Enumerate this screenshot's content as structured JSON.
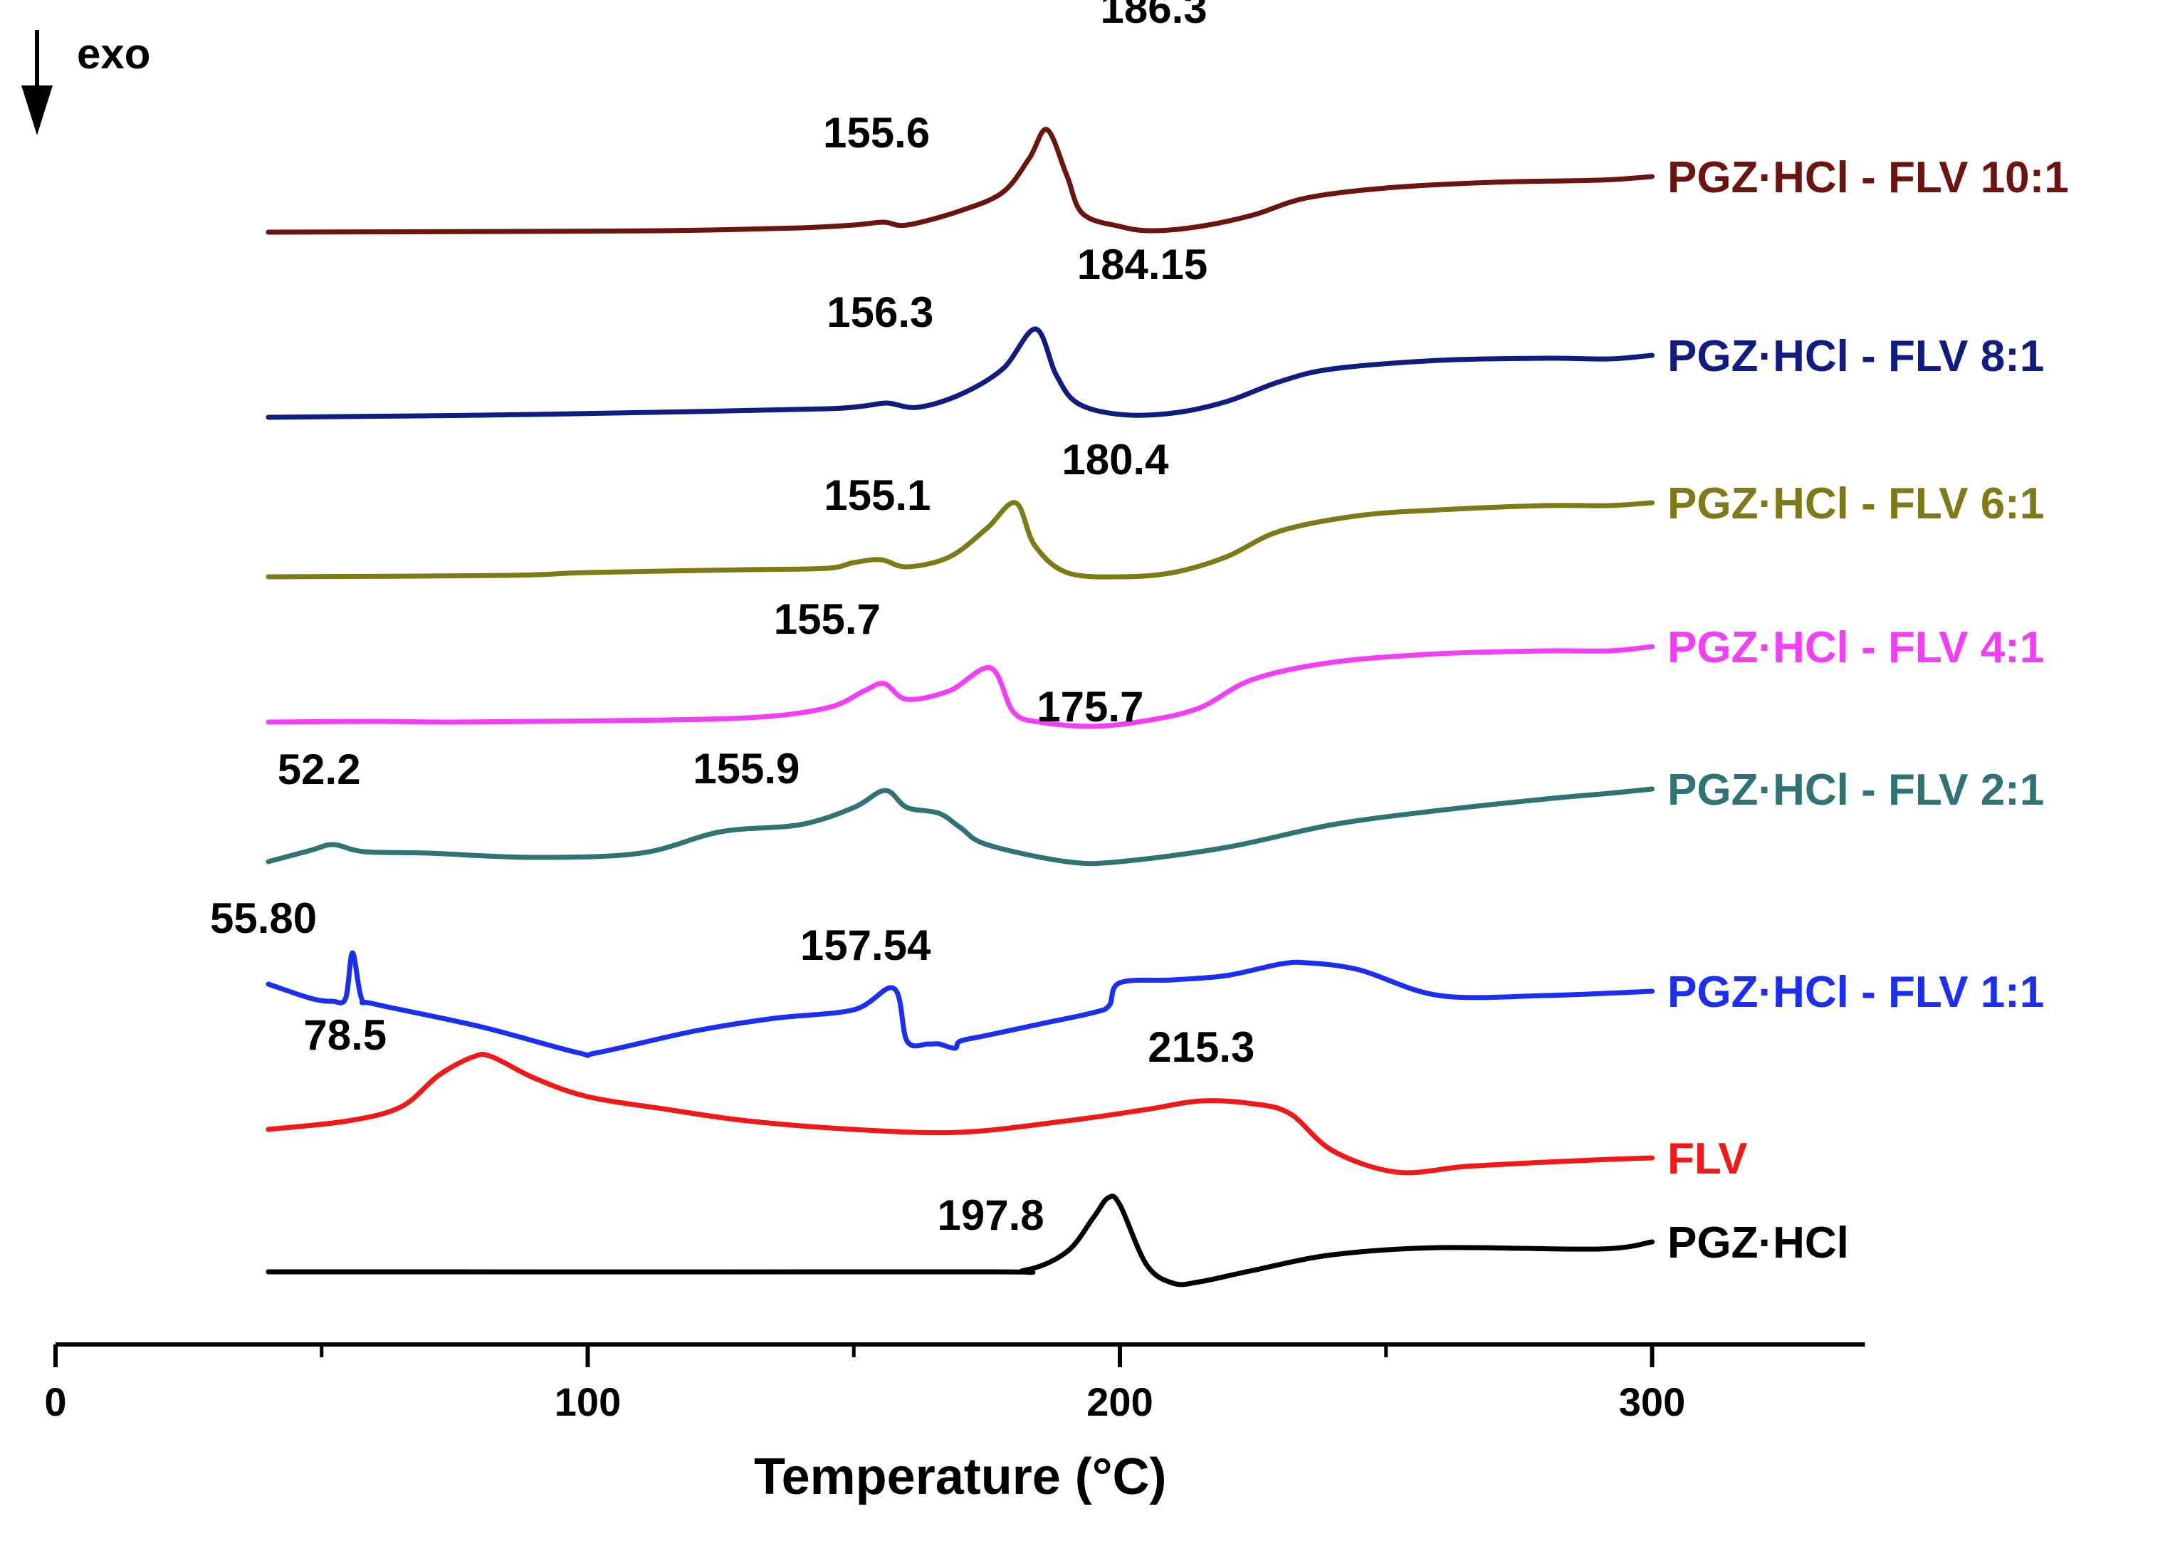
{
  "chart_data": {
    "type": "line",
    "title": "",
    "xlabel": "Temperature (°C)",
    "ylabel": "",
    "xlim": [
      0,
      340
    ],
    "x_ticks": [
      0,
      100,
      200,
      300
    ],
    "minor_ticks": [
      50,
      150,
      250
    ],
    "grid": false,
    "exo_label": "exo",
    "series": [
      {
        "name": "PGZ·HCl - FLV 10:1",
        "color": "#6B1410",
        "baseline": 0.0,
        "points": [
          [
            40,
            0
          ],
          [
            70,
            0.3
          ],
          [
            100,
            0.7
          ],
          [
            120,
            1.3
          ],
          [
            140,
            3
          ],
          [
            150,
            5
          ],
          [
            155.6,
            7
          ],
          [
            160,
            5
          ],
          [
            170,
            15
          ],
          [
            178,
            28
          ],
          [
            183,
            52
          ],
          [
            186.3,
            72
          ],
          [
            190,
            40
          ],
          [
            193,
            13
          ],
          [
            200,
            4
          ],
          [
            206,
            1
          ],
          [
            215,
            4
          ],
          [
            225,
            12
          ],
          [
            235,
            24
          ],
          [
            250,
            31
          ],
          [
            270,
            35
          ],
          [
            290,
            36.5
          ],
          [
            300,
            39
          ]
        ],
        "annotations": [
          {
            "x": 155.6,
            "label": "155.6"
          },
          {
            "x": 186.3,
            "label": "186.3"
          }
        ]
      },
      {
        "name": "PGZ·HCl - FLV 8:1",
        "color": "#111C80",
        "baseline": 0.0,
        "points": [
          [
            40,
            0
          ],
          [
            80,
            1.5
          ],
          [
            120,
            4
          ],
          [
            145,
            6
          ],
          [
            152,
            8
          ],
          [
            156.3,
            10
          ],
          [
            162,
            7
          ],
          [
            170,
            16
          ],
          [
            178,
            34
          ],
          [
            184.15,
            62
          ],
          [
            188,
            30
          ],
          [
            192,
            10
          ],
          [
            200,
            2
          ],
          [
            210,
            3
          ],
          [
            220,
            11
          ],
          [
            230,
            25
          ],
          [
            240,
            34
          ],
          [
            260,
            40
          ],
          [
            280,
            41.5
          ],
          [
            292,
            41
          ],
          [
            300,
            43.5
          ]
        ],
        "annotations": [
          {
            "x": 156.3,
            "label": "156.3"
          },
          {
            "x": 184.15,
            "label": "184.15"
          }
        ]
      },
      {
        "name": "PGZ·HCl - FLV 6:1",
        "color": "#7F7A18",
        "baseline": 0.0,
        "points": [
          [
            40,
            0
          ],
          [
            85,
            1
          ],
          [
            100,
            3
          ],
          [
            130,
            5
          ],
          [
            145,
            6
          ],
          [
            150,
            10
          ],
          [
            155.1,
            12
          ],
          [
            160,
            7
          ],
          [
            168,
            14
          ],
          [
            175,
            34
          ],
          [
            180.4,
            52
          ],
          [
            184,
            22
          ],
          [
            190,
            3
          ],
          [
            200,
            0
          ],
          [
            210,
            3
          ],
          [
            220,
            14
          ],
          [
            230,
            32
          ],
          [
            245,
            43
          ],
          [
            260,
            47
          ],
          [
            280,
            50
          ],
          [
            292,
            50
          ],
          [
            300,
            52
          ]
        ],
        "annotations": [
          {
            "x": 155.1,
            "label": "155.1"
          },
          {
            "x": 180.4,
            "label": "180.4"
          }
        ]
      },
      {
        "name": "PGZ·HCl - FLV 4:1",
        "color": "#F23FF5",
        "baseline": 0.0,
        "points": [
          [
            40,
            0
          ],
          [
            60,
            0.5
          ],
          [
            75,
            0
          ],
          [
            100,
            0.8
          ],
          [
            130,
            3
          ],
          [
            145,
            10
          ],
          [
            152,
            22
          ],
          [
            155.7,
            27
          ],
          [
            160,
            16
          ],
          [
            168,
            22
          ],
          [
            175.7,
            38
          ],
          [
            180,
            7
          ],
          [
            185,
            0
          ],
          [
            195,
            -3
          ],
          [
            205,
            1
          ],
          [
            215,
            10
          ],
          [
            225,
            30
          ],
          [
            240,
            42
          ],
          [
            260,
            48
          ],
          [
            280,
            50
          ],
          [
            292,
            50
          ],
          [
            300,
            53
          ]
        ],
        "annotations": [
          {
            "x": 155.7,
            "label": "155.7"
          },
          {
            "x": 175.7,
            "label": "175.7"
          }
        ]
      },
      {
        "name": "PGZ·HCl - FLV 2:1",
        "color": "#2F7374",
        "baseline": 0.0,
        "points": [
          [
            40,
            0
          ],
          [
            48,
            8
          ],
          [
            52.2,
            12
          ],
          [
            58,
            7
          ],
          [
            70,
            6
          ],
          [
            90,
            3
          ],
          [
            110,
            6
          ],
          [
            125,
            21
          ],
          [
            140,
            26
          ],
          [
            150,
            38
          ],
          [
            155.9,
            50
          ],
          [
            160,
            38
          ],
          [
            166,
            34
          ],
          [
            170,
            24
          ],
          [
            175,
            12
          ],
          [
            190,
            0
          ],
          [
            200,
            0
          ],
          [
            220,
            10
          ],
          [
            240,
            26
          ],
          [
            260,
            36
          ],
          [
            280,
            44
          ],
          [
            292,
            48
          ],
          [
            300,
            51
          ]
        ],
        "annotations": [
          {
            "x": 52.2,
            "label": "52.2"
          },
          {
            "x": 155.9,
            "label": "155.9"
          }
        ]
      },
      {
        "name": "PGZ·HCl - FLV 1:1",
        "color": "#1C2EF2",
        "baseline": 0.0,
        "points": [
          [
            40,
            0
          ],
          [
            48,
            -10
          ],
          [
            52,
            -12
          ],
          [
            54.5,
            -10
          ],
          [
            55.8,
            22
          ],
          [
            57.5,
            -10
          ],
          [
            60,
            -14
          ],
          [
            80,
            -30
          ],
          [
            98,
            -48
          ],
          [
            102,
            -48
          ],
          [
            120,
            -33
          ],
          [
            135,
            -24
          ],
          [
            150,
            -18
          ],
          [
            157.54,
            -3
          ],
          [
            160,
            -40
          ],
          [
            164,
            -42
          ],
          [
            166,
            -42
          ],
          [
            169,
            -45
          ],
          [
            170,
            -40
          ],
          [
            175,
            -36
          ],
          [
            185,
            -28
          ],
          [
            195,
            -20
          ],
          [
            198,
            -15
          ],
          [
            200,
            1
          ],
          [
            210,
            3
          ],
          [
            220,
            6
          ],
          [
            230,
            14
          ],
          [
            235,
            15
          ],
          [
            245,
            10
          ],
          [
            260,
            -8
          ],
          [
            280,
            -8
          ],
          [
            300,
            -5
          ]
        ],
        "annotations": [
          {
            "x": 55.8,
            "label": "55.80"
          },
          {
            "x": 157.54,
            "label": "157.54"
          }
        ]
      },
      {
        "name": "FLV",
        "color": "#F21818",
        "baseline": 0.0,
        "points": [
          [
            40,
            0
          ],
          [
            55,
            6
          ],
          [
            65,
            16
          ],
          [
            72,
            38
          ],
          [
            78.5,
            51
          ],
          [
            82,
            51
          ],
          [
            90,
            36
          ],
          [
            100,
            23
          ],
          [
            115,
            14
          ],
          [
            130,
            6
          ],
          [
            150,
            0
          ],
          [
            170,
            -2
          ],
          [
            190,
            6
          ],
          [
            205,
            14
          ],
          [
            215.3,
            20
          ],
          [
            225,
            18
          ],
          [
            232,
            11
          ],
          [
            240,
            -15
          ],
          [
            252,
            -30
          ],
          [
            265,
            -26
          ],
          [
            280,
            -23
          ],
          [
            292,
            -21
          ],
          [
            300,
            -20
          ]
        ],
        "annotations": [
          {
            "x": 78.5,
            "label": "78.5"
          },
          {
            "x": 215.3,
            "label": "215.3"
          }
        ]
      },
      {
        "name": "PGZ·HCl",
        "color": "#000000",
        "baseline": 0.0,
        "points": [
          [
            40,
            0
          ],
          [
            170,
            0
          ],
          [
            182,
            1
          ],
          [
            190,
            14
          ],
          [
            195,
            38
          ],
          [
            197.8,
            52
          ],
          [
            200,
            47
          ],
          [
            205,
            5
          ],
          [
            210,
            -8
          ],
          [
            215,
            -7
          ],
          [
            225,
            1
          ],
          [
            240,
            12
          ],
          [
            260,
            17
          ],
          [
            290,
            16
          ],
          [
            300,
            21
          ]
        ],
        "annotations": [
          {
            "x": 197.8,
            "label": "197.8"
          }
        ]
      }
    ]
  }
}
